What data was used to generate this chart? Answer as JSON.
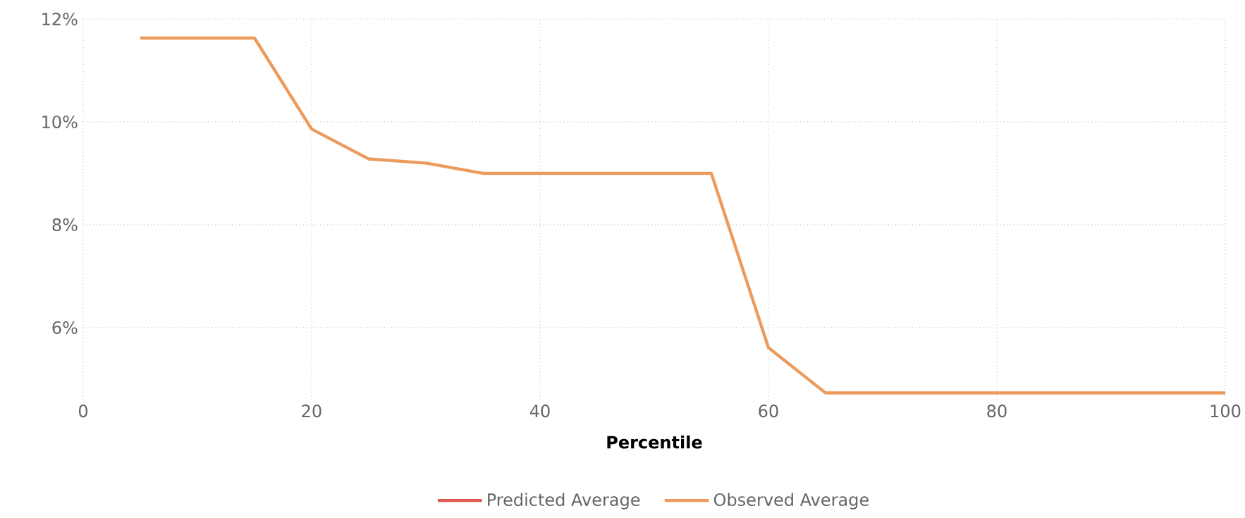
{
  "chart_data": {
    "type": "line",
    "xlabel": "Percentile",
    "x": [
      5,
      10,
      15,
      20,
      25,
      30,
      35,
      40,
      45,
      50,
      55,
      60,
      65,
      70,
      75,
      80,
      85,
      90,
      95,
      100
    ],
    "series": [
      {
        "name": "Predicted Average",
        "color": "#e0574f",
        "values": [
          null,
          null,
          null,
          null,
          null,
          null,
          null,
          null,
          null,
          null,
          null,
          null,
          null,
          null,
          null,
          null,
          null,
          null,
          null,
          null
        ]
      },
      {
        "name": "Observed Average",
        "color": "#ed9b5d",
        "values": [
          11.63,
          11.63,
          11.63,
          9.86,
          9.28,
          9.2,
          9.0,
          9.0,
          9.0,
          9.0,
          9.0,
          5.61,
          4.73,
          4.73,
          4.73,
          4.73,
          4.73,
          4.73,
          4.73,
          4.73
        ]
      }
    ],
    "xlim": [
      0,
      100
    ],
    "ylim": [
      4.6,
      12
    ],
    "xticks": [
      0,
      20,
      40,
      60,
      80,
      100
    ],
    "yticks": [
      {
        "value": 6,
        "label": "6%"
      },
      {
        "value": 8,
        "label": "8%"
      },
      {
        "value": 10,
        "label": "10%"
      },
      {
        "value": 12,
        "label": "12%"
      }
    ],
    "grid": true,
    "legend": "bottom",
    "line_style": "solid",
    "marker": "none"
  }
}
